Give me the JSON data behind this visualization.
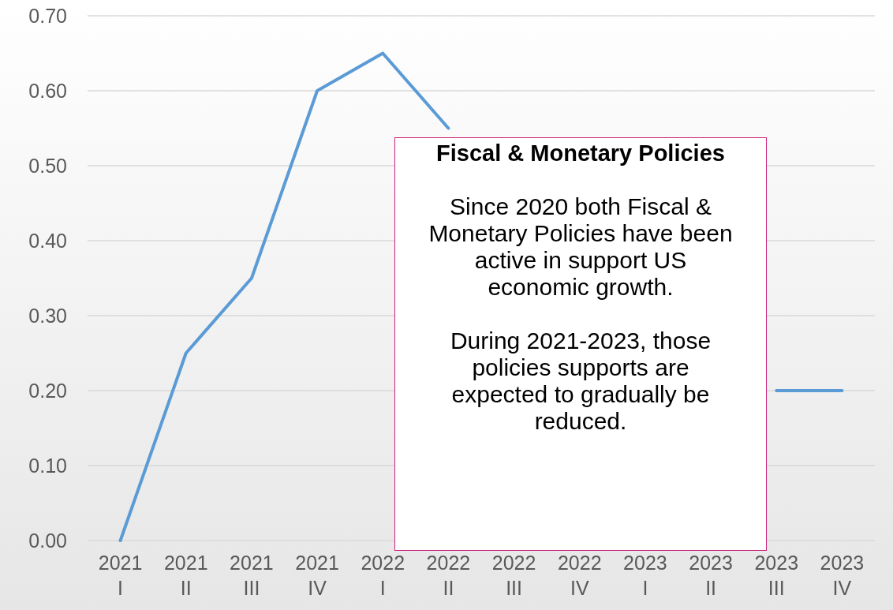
{
  "chart_data": {
    "type": "line",
    "categories": [
      "2021\nI",
      "2021\nII",
      "2021\nIII",
      "2021\nIV",
      "2022\nI",
      "2022\nII",
      "2022\nIII",
      "2022\nIV",
      "2023\nI",
      "2023\nII",
      "2023\nIII",
      "2023\nIV"
    ],
    "series": [
      {
        "color": "#5b9bd5",
        "values": [
          0,
          0.25,
          0.35,
          0.6,
          0.65,
          0.55,
          null,
          null,
          null,
          null,
          0.2,
          0.2
        ]
      }
    ],
    "ylim": [
      0,
      0.7
    ],
    "yticks": [
      {
        "value": 0,
        "label": "0.00"
      },
      {
        "value": 0.1,
        "label": "0.10"
      },
      {
        "value": 0.2,
        "label": "0.20"
      },
      {
        "value": 0.3,
        "label": "0.30"
      },
      {
        "value": 0.4,
        "label": "0.40"
      },
      {
        "value": 0.5,
        "label": "0.50"
      },
      {
        "value": 0.6,
        "label": "0.60"
      },
      {
        "value": 0.7,
        "label": "0.70"
      }
    ],
    "grid": "y",
    "marker": "none",
    "line_style": "solid",
    "annotations": [
      "Fiscal & Monetary Policies",
      "Since 2020 both Fiscal & Monetary Policies have been active in support US economic growth.",
      "During 2021-2023, those policies supports are expected to gradually be reduced."
    ]
  }
}
